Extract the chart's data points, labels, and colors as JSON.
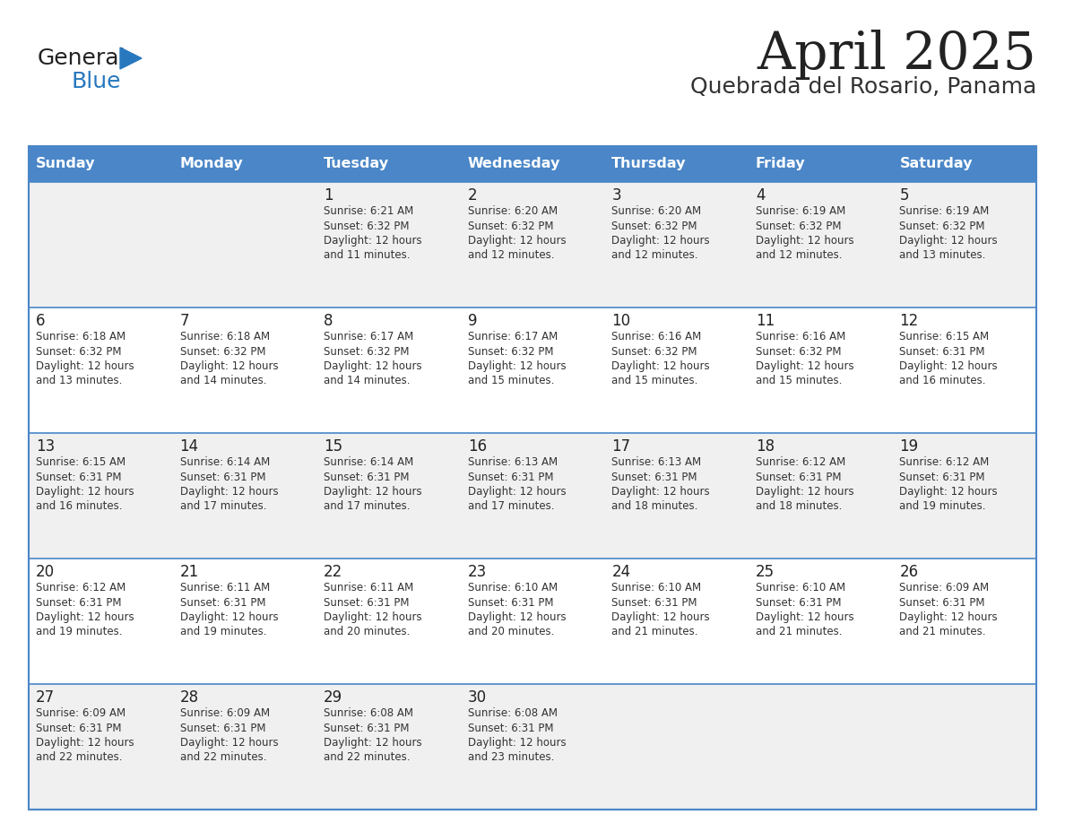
{
  "title": "April 2025",
  "subtitle": "Quebrada del Rosario, Panama",
  "days_of_week": [
    "Sunday",
    "Monday",
    "Tuesday",
    "Wednesday",
    "Thursday",
    "Friday",
    "Saturday"
  ],
  "header_bg": "#4A86C8",
  "header_text": "#FFFFFF",
  "row_bg_odd": "#F0F0F0",
  "row_bg_even": "#FFFFFF",
  "cell_text_color": "#333333",
  "day_num_color": "#222222",
  "grid_color": "#4A86C8",
  "title_color": "#222222",
  "subtitle_color": "#333333",
  "logo_general_color": "#222222",
  "logo_blue_color": "#2878BE",
  "calendar_data": [
    [
      {
        "day": "",
        "sunrise": "",
        "sunset": "",
        "daylight_h": "",
        "daylight_m": ""
      },
      {
        "day": "",
        "sunrise": "",
        "sunset": "",
        "daylight_h": "",
        "daylight_m": ""
      },
      {
        "day": "1",
        "sunrise": "6:21 AM",
        "sunset": "6:32 PM",
        "daylight_h": "12",
        "daylight_m": "11"
      },
      {
        "day": "2",
        "sunrise": "6:20 AM",
        "sunset": "6:32 PM",
        "daylight_h": "12",
        "daylight_m": "12"
      },
      {
        "day": "3",
        "sunrise": "6:20 AM",
        "sunset": "6:32 PM",
        "daylight_h": "12",
        "daylight_m": "12"
      },
      {
        "day": "4",
        "sunrise": "6:19 AM",
        "sunset": "6:32 PM",
        "daylight_h": "12",
        "daylight_m": "12"
      },
      {
        "day": "5",
        "sunrise": "6:19 AM",
        "sunset": "6:32 PM",
        "daylight_h": "12",
        "daylight_m": "13"
      }
    ],
    [
      {
        "day": "6",
        "sunrise": "6:18 AM",
        "sunset": "6:32 PM",
        "daylight_h": "12",
        "daylight_m": "13"
      },
      {
        "day": "7",
        "sunrise": "6:18 AM",
        "sunset": "6:32 PM",
        "daylight_h": "12",
        "daylight_m": "14"
      },
      {
        "day": "8",
        "sunrise": "6:17 AM",
        "sunset": "6:32 PM",
        "daylight_h": "12",
        "daylight_m": "14"
      },
      {
        "day": "9",
        "sunrise": "6:17 AM",
        "sunset": "6:32 PM",
        "daylight_h": "12",
        "daylight_m": "15"
      },
      {
        "day": "10",
        "sunrise": "6:16 AM",
        "sunset": "6:32 PM",
        "daylight_h": "12",
        "daylight_m": "15"
      },
      {
        "day": "11",
        "sunrise": "6:16 AM",
        "sunset": "6:32 PM",
        "daylight_h": "12",
        "daylight_m": "15"
      },
      {
        "day": "12",
        "sunrise": "6:15 AM",
        "sunset": "6:31 PM",
        "daylight_h": "12",
        "daylight_m": "16"
      }
    ],
    [
      {
        "day": "13",
        "sunrise": "6:15 AM",
        "sunset": "6:31 PM",
        "daylight_h": "12",
        "daylight_m": "16"
      },
      {
        "day": "14",
        "sunrise": "6:14 AM",
        "sunset": "6:31 PM",
        "daylight_h": "12",
        "daylight_m": "17"
      },
      {
        "day": "15",
        "sunrise": "6:14 AM",
        "sunset": "6:31 PM",
        "daylight_h": "12",
        "daylight_m": "17"
      },
      {
        "day": "16",
        "sunrise": "6:13 AM",
        "sunset": "6:31 PM",
        "daylight_h": "12",
        "daylight_m": "17"
      },
      {
        "day": "17",
        "sunrise": "6:13 AM",
        "sunset": "6:31 PM",
        "daylight_h": "12",
        "daylight_m": "18"
      },
      {
        "day": "18",
        "sunrise": "6:12 AM",
        "sunset": "6:31 PM",
        "daylight_h": "12",
        "daylight_m": "18"
      },
      {
        "day": "19",
        "sunrise": "6:12 AM",
        "sunset": "6:31 PM",
        "daylight_h": "12",
        "daylight_m": "19"
      }
    ],
    [
      {
        "day": "20",
        "sunrise": "6:12 AM",
        "sunset": "6:31 PM",
        "daylight_h": "12",
        "daylight_m": "19"
      },
      {
        "day": "21",
        "sunrise": "6:11 AM",
        "sunset": "6:31 PM",
        "daylight_h": "12",
        "daylight_m": "19"
      },
      {
        "day": "22",
        "sunrise": "6:11 AM",
        "sunset": "6:31 PM",
        "daylight_h": "12",
        "daylight_m": "20"
      },
      {
        "day": "23",
        "sunrise": "6:10 AM",
        "sunset": "6:31 PM",
        "daylight_h": "12",
        "daylight_m": "20"
      },
      {
        "day": "24",
        "sunrise": "6:10 AM",
        "sunset": "6:31 PM",
        "daylight_h": "12",
        "daylight_m": "21"
      },
      {
        "day": "25",
        "sunrise": "6:10 AM",
        "sunset": "6:31 PM",
        "daylight_h": "12",
        "daylight_m": "21"
      },
      {
        "day": "26",
        "sunrise": "6:09 AM",
        "sunset": "6:31 PM",
        "daylight_h": "12",
        "daylight_m": "21"
      }
    ],
    [
      {
        "day": "27",
        "sunrise": "6:09 AM",
        "sunset": "6:31 PM",
        "daylight_h": "12",
        "daylight_m": "22"
      },
      {
        "day": "28",
        "sunrise": "6:09 AM",
        "sunset": "6:31 PM",
        "daylight_h": "12",
        "daylight_m": "22"
      },
      {
        "day": "29",
        "sunrise": "6:08 AM",
        "sunset": "6:31 PM",
        "daylight_h": "12",
        "daylight_m": "22"
      },
      {
        "day": "30",
        "sunrise": "6:08 AM",
        "sunset": "6:31 PM",
        "daylight_h": "12",
        "daylight_m": "23"
      },
      {
        "day": "",
        "sunrise": "",
        "sunset": "",
        "daylight_h": "",
        "daylight_m": ""
      },
      {
        "day": "",
        "sunrise": "",
        "sunset": "",
        "daylight_h": "",
        "daylight_m": ""
      },
      {
        "day": "",
        "sunrise": "",
        "sunset": "",
        "daylight_h": "",
        "daylight_m": ""
      }
    ]
  ]
}
